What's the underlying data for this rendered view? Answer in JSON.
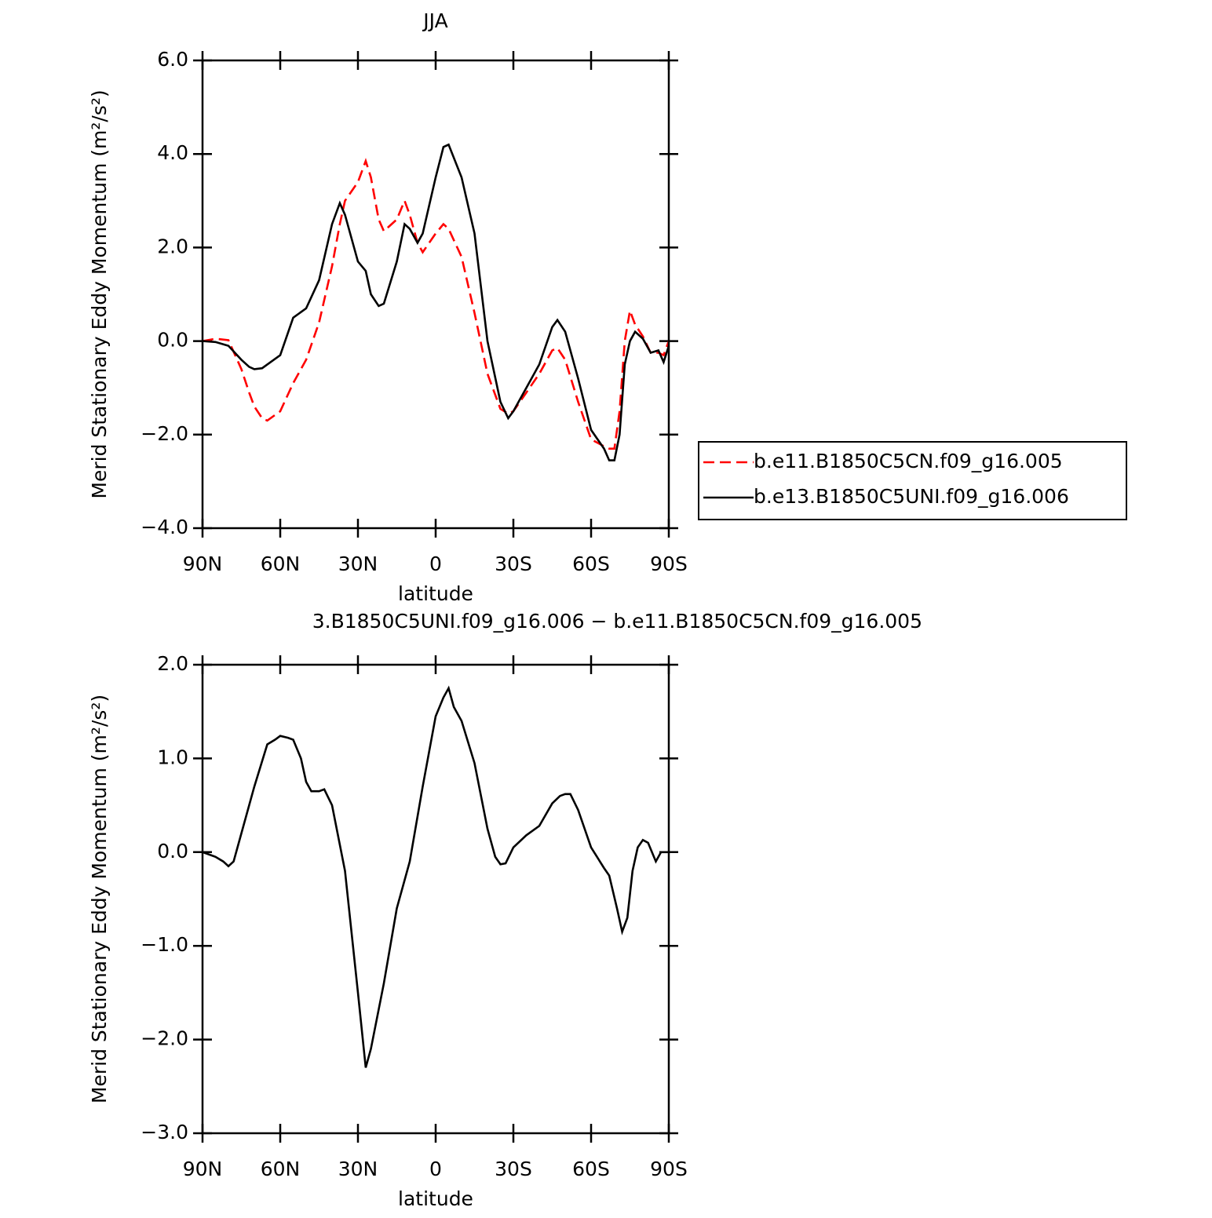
{
  "chart_data": [
    {
      "type": "line",
      "title": "JJA",
      "xlabel": "latitude",
      "ylabel": "Merid Stationary Eddy Momentum (m²/s²)",
      "x": [
        90,
        85,
        80,
        75,
        72,
        70,
        67,
        65,
        60,
        55,
        50,
        45,
        40,
        37,
        35,
        30,
        27,
        25,
        22,
        20,
        15,
        12,
        10,
        7,
        5,
        0,
        -3,
        -5,
        -10,
        -15,
        -20,
        -25,
        -28,
        -30,
        -35,
        -40,
        -45,
        -47,
        -50,
        -55,
        -60,
        -65,
        -67,
        -69,
        -71,
        -73,
        -75,
        -77,
        -80,
        -83,
        -86,
        -88,
        -90
      ],
      "series": [
        {
          "name": "b.e11.B1850C5CN.f09_g16.005",
          "color": "#ff0000",
          "linestyle": "dashed",
          "values": [
            0.0,
            0.05,
            0.02,
            -0.6,
            -1.1,
            -1.4,
            -1.65,
            -1.7,
            -1.5,
            -0.9,
            -0.4,
            0.4,
            1.6,
            2.5,
            3.0,
            3.4,
            3.85,
            3.5,
            2.6,
            2.35,
            2.6,
            3.0,
            2.7,
            2.1,
            1.9,
            2.3,
            2.5,
            2.4,
            1.8,
            0.6,
            -0.7,
            -1.45,
            -1.55,
            -1.5,
            -1.1,
            -0.7,
            -0.2,
            -0.15,
            -0.4,
            -1.3,
            -2.1,
            -2.25,
            -2.3,
            -2.3,
            -1.5,
            0.0,
            0.65,
            0.35,
            0.1,
            -0.25,
            -0.25,
            -0.3,
            0.0
          ]
        },
        {
          "name": "b.e13.B1850C5UNI.f09_g16.006",
          "color": "#000000",
          "linestyle": "solid",
          "values": [
            0.0,
            -0.02,
            -0.1,
            -0.4,
            -0.55,
            -0.6,
            -0.58,
            -0.5,
            -0.3,
            0.5,
            0.7,
            1.3,
            2.5,
            2.95,
            2.7,
            1.7,
            1.5,
            1.0,
            0.75,
            0.8,
            1.7,
            2.5,
            2.4,
            2.1,
            2.3,
            3.5,
            4.15,
            4.2,
            3.5,
            2.3,
            0.0,
            -1.3,
            -1.65,
            -1.5,
            -1.0,
            -0.5,
            0.3,
            0.45,
            0.2,
            -0.8,
            -1.9,
            -2.3,
            -2.55,
            -2.55,
            -2.0,
            -0.5,
            0.0,
            0.2,
            0.05,
            -0.25,
            -0.2,
            -0.45,
            -0.1
          ]
        }
      ],
      "xlim": [
        90,
        -90
      ],
      "xticks": [
        {
          "value": 90,
          "label": "90N"
        },
        {
          "value": 60,
          "label": "60N"
        },
        {
          "value": 30,
          "label": "30N"
        },
        0,
        {
          "value": -30,
          "label": "30S"
        },
        {
          "value": -60,
          "label": "60S"
        },
        {
          "value": -90,
          "label": "90S"
        }
      ],
      "ylim": [
        -4,
        6
      ],
      "yticks": [
        {
          "value": -4,
          "label": "−4.0"
        },
        {
          "value": -2,
          "label": "−2.0"
        },
        {
          "value": 0,
          "label": "0.0"
        },
        {
          "value": 2,
          "label": "2.0"
        },
        {
          "value": 4,
          "label": "4.0"
        },
        {
          "value": 6,
          "label": "6.0"
        }
      ],
      "legend": "right"
    },
    {
      "type": "line",
      "title": "3.B1850C5UNI.f09_g16.006 − b.e11.B1850C5CN.f09_g16.005",
      "xlabel": "latitude",
      "ylabel": "Merid Stationary Eddy Momentum (m²/s²)",
      "x": [
        90,
        87,
        85,
        82,
        80,
        78,
        75,
        70,
        65,
        62,
        60,
        57,
        55,
        52,
        50,
        48,
        45,
        43,
        40,
        35,
        30,
        27,
        25,
        20,
        15,
        12,
        10,
        5,
        0,
        -3,
        -5,
        -7,
        -10,
        -15,
        -20,
        -23,
        -25,
        -27,
        -30,
        -35,
        -40,
        -45,
        -48,
        -50,
        -52,
        -55,
        -60,
        -65,
        -67,
        -70,
        -72,
        -74,
        -76,
        -78,
        -80,
        -82,
        -85,
        -87,
        -90
      ],
      "values": [
        0.0,
        -0.03,
        -0.05,
        -0.1,
        -0.15,
        -0.1,
        0.2,
        0.7,
        1.15,
        1.2,
        1.24,
        1.22,
        1.2,
        1.0,
        0.75,
        0.65,
        0.65,
        0.67,
        0.5,
        -0.2,
        -1.5,
        -2.3,
        -2.1,
        -1.4,
        -0.6,
        -0.3,
        -0.1,
        0.7,
        1.45,
        1.65,
        1.75,
        1.55,
        1.4,
        0.95,
        0.25,
        -0.05,
        -0.13,
        -0.12,
        0.05,
        0.18,
        0.28,
        0.52,
        0.6,
        0.62,
        0.62,
        0.45,
        0.05,
        -0.17,
        -0.25,
        -0.6,
        -0.85,
        -0.7,
        -0.2,
        0.05,
        0.13,
        0.1,
        -0.1,
        0.0,
        0.0
      ],
      "color": "#000000",
      "linestyle": "solid",
      "xlim": [
        90,
        -90
      ],
      "xticks": [
        {
          "value": 90,
          "label": "90N"
        },
        {
          "value": 60,
          "label": "60N"
        },
        {
          "value": 30,
          "label": "30N"
        },
        0,
        {
          "value": -30,
          "label": "30S"
        },
        {
          "value": -60,
          "label": "60S"
        },
        {
          "value": -90,
          "label": "90S"
        }
      ],
      "ylim": [
        -3,
        2
      ],
      "yticks": [
        {
          "value": -3,
          "label": "−3.0"
        },
        {
          "value": -2,
          "label": "−2.0"
        },
        {
          "value": -1,
          "label": "−1.0"
        },
        {
          "value": 0,
          "label": "0.0"
        },
        {
          "value": 1,
          "label": "1.0"
        },
        {
          "value": 2,
          "label": "2.0"
        }
      ]
    }
  ]
}
